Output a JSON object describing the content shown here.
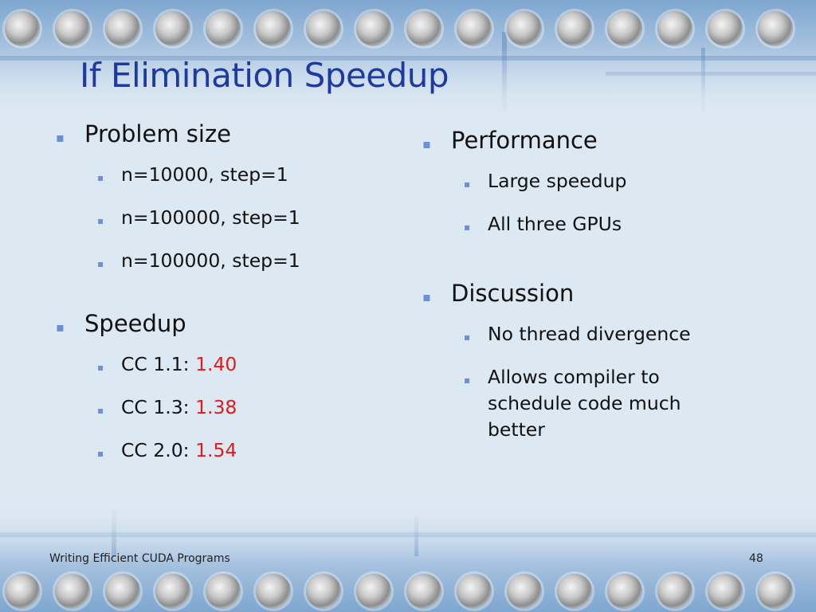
{
  "slide": {
    "title": "If Elimination Speedup",
    "bullet_glyph": "▪",
    "left": {
      "problem_size": {
        "heading": "Problem size",
        "items": [
          "n=10000, step=1",
          "n=100000, step=1",
          "n=100000, step=1"
        ]
      },
      "speedup": {
        "heading": "Speedup",
        "items": [
          {
            "label": "CC 1.1: ",
            "value": "1.40"
          },
          {
            "label": "CC 1.3: ",
            "value": "1.38"
          },
          {
            "label": "CC 2.0: ",
            "value": "1.54"
          }
        ]
      }
    },
    "right": {
      "performance": {
        "heading": "Performance",
        "items": [
          "Large speedup",
          "All three GPUs"
        ]
      },
      "discussion": {
        "heading": "Discussion",
        "items": [
          "No thread divergence",
          "Allows compiler to schedule code much better"
        ]
      }
    },
    "footer": {
      "text": "Writing Efficient CUDA Programs",
      "page_number": "48"
    },
    "colors": {
      "title": "#1f3a9e",
      "bullet": "#6d8fd6",
      "highlight": "#e01b1b"
    }
  }
}
